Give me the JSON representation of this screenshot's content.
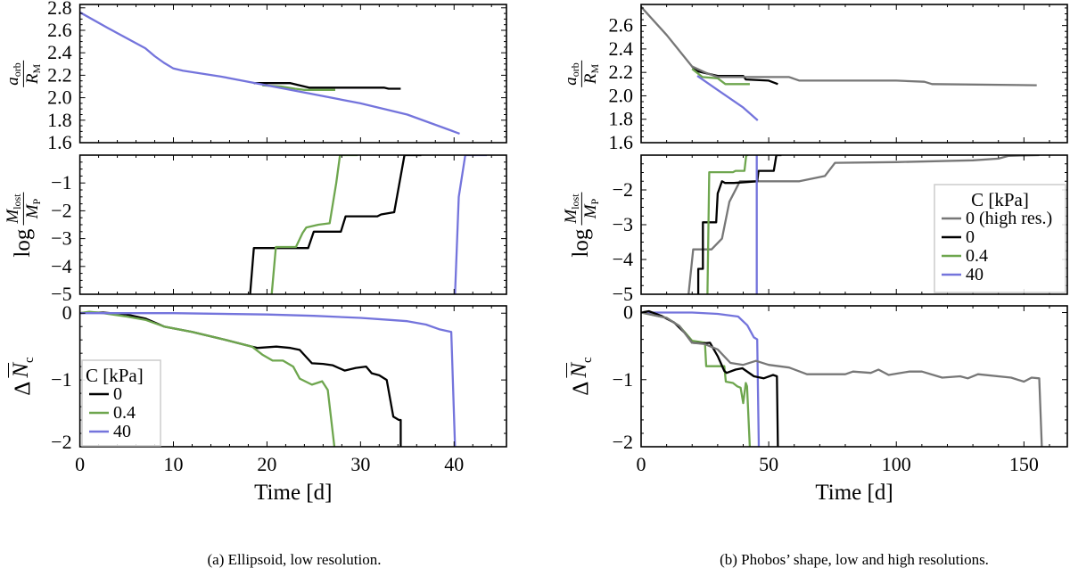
{
  "chart_data": [
    {
      "type": "line",
      "caption": "(a) Ellipsoid, low resolution.",
      "xlabel": "Time [d]",
      "xlim": [
        0,
        45.6
      ],
      "xticks": [
        0,
        10,
        20,
        30,
        40
      ],
      "xticklabels": [
        "0",
        "10",
        "20",
        "30",
        "40"
      ],
      "xminor": 2,
      "legend": {
        "title": "C [kPa]",
        "placement": "lower-left of bottom panel",
        "entries": [
          {
            "name": "0",
            "color": "#000000"
          },
          {
            "name": "0.4",
            "color": "#6ea64e"
          },
          {
            "name": "40",
            "color": "#7474dc"
          }
        ]
      },
      "panels": [
        {
          "ylabel": {
            "kind": "frac",
            "pre": "",
            "num": "a",
            "num_sub": "orb",
            "den": "R",
            "den_sub": "M"
          },
          "ylim": [
            1.6,
            2.83
          ],
          "yticks": [
            1.6,
            1.8,
            2.0,
            2.2,
            2.4,
            2.6,
            2.8
          ],
          "yticklabels": [
            "1.6",
            "1.8",
            "2.0",
            "2.2",
            "2.4",
            "2.6",
            "2.8"
          ],
          "yminor": 0.05,
          "series": [
            {
              "name": "0",
              "color": "#000000",
              "x": [
                18.6,
                22.5,
                23.5,
                24.5,
                28,
                32.5,
                33,
                34.3
              ],
              "y": [
                2.13,
                2.13,
                2.11,
                2.09,
                2.09,
                2.09,
                2.08,
                2.08
              ]
            },
            {
              "name": "0.4",
              "color": "#6ea64e",
              "x": [
                19.5,
                21.5,
                23,
                24,
                25.5,
                27.3
              ],
              "y": [
                2.11,
                2.1,
                2.08,
                2.07,
                2.07,
                2.07
              ]
            },
            {
              "name": "40",
              "color": "#7474dc",
              "x": [
                0,
                3,
                7,
                8,
                9,
                10,
                11,
                15,
                20,
                25,
                30,
                35,
                40.6
              ],
              "y": [
                2.76,
                2.62,
                2.44,
                2.37,
                2.31,
                2.26,
                2.24,
                2.19,
                2.11,
                2.03,
                1.95,
                1.85,
                1.68
              ]
            }
          ]
        },
        {
          "ylabel": {
            "kind": "frac",
            "pre": "log",
            "num": "M",
            "num_sub": "lost",
            "den": "M",
            "den_sub": "P"
          },
          "ylim": [
            -5,
            0
          ],
          "yticks": [
            -5,
            -4,
            -3,
            -2,
            -1
          ],
          "yticklabels": [
            "−5",
            "−4",
            "−3",
            "−2",
            "−1"
          ],
          "yminor": 0.25,
          "series": [
            {
              "name": "0",
              "color": "#000000",
              "x": [
                18.2,
                18.6,
                24.4,
                25.0,
                27.9,
                28.4,
                31.8,
                32.2,
                33.6,
                34.7,
                36.5
              ],
              "y": [
                -5,
                -3.34,
                -3.34,
                -2.75,
                -2.75,
                -2.2,
                -2.2,
                -2.13,
                -2.05,
                0,
                0
              ]
            },
            {
              "name": "0.4",
              "color": "#6ea64e",
              "x": [
                20.5,
                20.95,
                23.1,
                23.8,
                24.2,
                25.5,
                26.7,
                27.4,
                27.8,
                29.7
              ],
              "y": [
                -5,
                -3.3,
                -3.3,
                -2.8,
                -2.6,
                -2.5,
                -2.45,
                -1,
                0,
                0
              ]
            },
            {
              "name": "40",
              "color": "#7474dc",
              "x": [
                40.1,
                40.5,
                41.2,
                43.5
              ],
              "y": [
                -5,
                -1.5,
                0,
                0
              ]
            }
          ]
        },
        {
          "ylabel": {
            "kind": "delta",
            "pre": "Δ",
            "sym": "N",
            "sub": "c"
          },
          "ylim": [
            -2,
            0.11
          ],
          "yticks": [
            -2,
            -1,
            0
          ],
          "yticklabels": [
            "−2",
            "−1",
            "0"
          ],
          "yminor": 0.2,
          "series": [
            {
              "name": "0",
              "color": "#000000",
              "x": [
                0,
                1,
                2.5,
                5,
                7,
                9,
                12,
                15,
                18.4,
                19,
                21,
                22.5,
                23.5,
                24.8,
                26,
                27,
                28.3,
                29.5,
                30.6,
                31.2,
                32,
                32.8,
                33.5,
                34.1,
                34.3,
                34.3
              ],
              "y": [
                0,
                0.01,
                0.01,
                -0.02,
                -0.08,
                -0.2,
                -0.28,
                -0.38,
                -0.5,
                -0.52,
                -0.5,
                -0.52,
                -0.55,
                -0.75,
                -0.76,
                -0.78,
                -0.86,
                -0.82,
                -0.8,
                -0.9,
                -0.93,
                -1.0,
                -1.55,
                -1.6,
                -1.6,
                -2
              ]
            },
            {
              "name": "0.4",
              "color": "#6ea64e",
              "x": [
                0,
                1,
                2.5,
                5,
                7,
                9,
                12,
                15,
                18.4,
                19.5,
                20.6,
                21.7,
                22.8,
                23.5,
                24.8,
                25.9,
                26.5,
                27.2
              ],
              "y": [
                0,
                0.02,
                0,
                -0.05,
                -0.1,
                -0.2,
                -0.28,
                -0.38,
                -0.5,
                -0.62,
                -0.71,
                -0.71,
                -0.8,
                -0.98,
                -1.07,
                -1.02,
                -1.15,
                -2
              ]
            },
            {
              "name": "40",
              "color": "#7474dc",
              "x": [
                0,
                10,
                20,
                25,
                30,
                33,
                35,
                37,
                38.4,
                39.7,
                40.1
              ],
              "y": [
                0,
                0,
                -0.02,
                -0.04,
                -0.07,
                -0.1,
                -0.12,
                -0.17,
                -0.24,
                -0.28,
                -2
              ]
            }
          ]
        }
      ]
    },
    {
      "type": "line",
      "caption": "(b) Phobos’ shape, low and high resolutions.",
      "xlabel": "Time [d]",
      "xlim": [
        0,
        167
      ],
      "xticks": [
        0,
        50,
        100,
        150
      ],
      "xticklabels": [
        "0",
        "50",
        "100",
        "150"
      ],
      "xminor": 10,
      "legend": {
        "title": "C [kPa]",
        "placement": "lower-right of middle panel",
        "entries": [
          {
            "name": "0 (high res.)",
            "color": "#777777"
          },
          {
            "name": "0",
            "color": "#000000"
          },
          {
            "name": "0.4",
            "color": "#6ea64e"
          },
          {
            "name": "40",
            "color": "#7474dc"
          }
        ]
      },
      "panels": [
        {
          "ylabel": {
            "kind": "frac",
            "pre": "",
            "num": "a",
            "num_sub": "orb",
            "den": "R",
            "den_sub": "M"
          },
          "ylim": [
            1.6,
            2.78
          ],
          "yticks": [
            1.6,
            1.8,
            2.0,
            2.2,
            2.4,
            2.6
          ],
          "yticklabels": [
            "1.6",
            "1.8",
            "2.0",
            "2.2",
            "2.4",
            "2.6"
          ],
          "yminor": 0.05,
          "series": [
            {
              "name": "0",
              "color": "#000000",
              "x": [
                20,
                22,
                30,
                40,
                41,
                50,
                53.6
              ],
              "y": [
                2.25,
                2.21,
                2.17,
                2.17,
                2.14,
                2.13,
                2.1
              ]
            },
            {
              "name": "0.4",
              "color": "#6ea64e",
              "x": [
                20,
                24,
                30,
                33,
                42.6
              ],
              "y": [
                2.23,
                2.16,
                2.15,
                2.1,
                2.1
              ]
            },
            {
              "name": "40",
              "color": "#7474dc",
              "x": [
                22,
                30,
                40,
                45.7
              ],
              "y": [
                2.17,
                2.05,
                1.9,
                1.79
              ]
            },
            {
              "name": "0 (high res.)",
              "color": "#777777",
              "x": [
                0,
                10,
                20,
                25,
                30,
                45,
                58,
                62,
                100,
                111,
                114,
                155
              ],
              "y": [
                2.76,
                2.52,
                2.25,
                2.2,
                2.16,
                2.16,
                2.16,
                2.13,
                2.13,
                2.12,
                2.1,
                2.09
              ]
            }
          ]
        },
        {
          "ylabel": {
            "kind": "frac",
            "pre": "log",
            "num": "M",
            "num_sub": "lost",
            "den": "M",
            "den_sub": "P"
          },
          "ylim": [
            -5,
            -1
          ],
          "yticks": [
            -5,
            -4,
            -3,
            -2
          ],
          "yticklabels": [
            "−5",
            "−4",
            "−3",
            "−2"
          ],
          "yminor": 0.25,
          "series": [
            {
              "name": "0 (high res.)",
              "color": "#777777",
              "x": [
                18.6,
                20.4,
                27.6,
                31.7,
                34.6,
                38.7,
                62,
                72,
                76,
                100,
                130,
                140,
                144,
                156
              ],
              "y": [
                -5,
                -3.71,
                -3.71,
                -3.4,
                -2.34,
                -1.75,
                -1.75,
                -1.6,
                -1.22,
                -1.2,
                -1.15,
                -1.1,
                -1.02,
                -1.0
              ]
            },
            {
              "name": "0",
              "color": "#000000",
              "x": [
                22.4,
                22.4,
                24.2,
                24.2,
                29.4,
                30.0,
                30.5,
                31.7,
                32.9,
                36.4,
                45.5,
                46,
                52,
                53,
                55
              ],
              "y": [
                -5,
                -4.27,
                -4.27,
                -2.93,
                -2.93,
                -2.1,
                -2.0,
                -1.75,
                -1.8,
                -1.8,
                -1.75,
                -1.45,
                -1.45,
                -1.0,
                -1.0
              ]
            },
            {
              "name": "0.4",
              "color": "#6ea64e",
              "x": [
                26.0,
                26.7,
                36,
                37,
                40.5,
                41.2,
                42
              ],
              "y": [
                -5,
                -1.49,
                -1.49,
                -1.45,
                -1.45,
                -1.0,
                -1.0
              ]
            },
            {
              "name": "40",
              "color": "#7474dc",
              "x": [
                45.3,
                45.3
              ],
              "y": [
                -5,
                -1
              ]
            }
          ]
        },
        {
          "ylabel": {
            "kind": "delta",
            "pre": "Δ",
            "sym": "N",
            "sub": "c"
          },
          "ylim": [
            -2,
            0.1
          ],
          "yticks": [
            -2,
            -1,
            0
          ],
          "yticklabels": [
            "−2",
            "−1",
            "0"
          ],
          "yminor": 0.2,
          "series": [
            {
              "name": "0.4",
              "color": "#6ea64e",
              "x": [
                0,
                10,
                15,
                20,
                25,
                25.5,
                32.6,
                33.2,
                36,
                37.7,
                39,
                40,
                41,
                41.5,
                42.6
              ],
              "y": [
                0,
                -0.08,
                -0.2,
                -0.42,
                -0.45,
                -0.8,
                -0.8,
                -1.03,
                -1.05,
                -1.1,
                -1.12,
                -1.35,
                -1.05,
                -1.1,
                -2
              ]
            },
            {
              "name": "40",
              "color": "#7474dc",
              "x": [
                0,
                20,
                30,
                38,
                41.6,
                44.2,
                45.5,
                46.1
              ],
              "y": [
                0,
                0,
                -0.02,
                -0.06,
                -0.19,
                -0.37,
                -0.4,
                -2
              ]
            },
            {
              "name": "0",
              "color": "#000000",
              "x": [
                0,
                3,
                8,
                13,
                17,
                20,
                24.2,
                27,
                30,
                32.6,
                33.5,
                37,
                39.7,
                44.2,
                48,
                51.7,
                53.2,
                53.6
              ],
              "y": [
                0,
                0.02,
                -0.05,
                -0.15,
                -0.3,
                -0.45,
                -0.46,
                -0.45,
                -0.65,
                -0.87,
                -0.9,
                -0.85,
                -0.83,
                -0.95,
                -0.98,
                -0.93,
                -0.95,
                -2
              ]
            },
            {
              "name": "0 (high res.)",
              "color": "#777777",
              "x": [
                0,
                10,
                15,
                20,
                25,
                30,
                35,
                40,
                45,
                50,
                58,
                65,
                80,
                83,
                90,
                93,
                97,
                105,
                110,
                118,
                125,
                128,
                132,
                145,
                150,
                153,
                156,
                157
              ],
              "y": [
                0,
                -0.08,
                -0.2,
                -0.45,
                -0.47,
                -0.55,
                -0.75,
                -0.78,
                -0.72,
                -0.78,
                -0.82,
                -0.92,
                -0.92,
                -0.88,
                -0.9,
                -0.85,
                -0.93,
                -0.88,
                -0.88,
                -0.97,
                -0.95,
                -0.98,
                -0.92,
                -0.97,
                -1.03,
                -0.97,
                -0.98,
                -2
              ]
            }
          ]
        }
      ]
    }
  ]
}
